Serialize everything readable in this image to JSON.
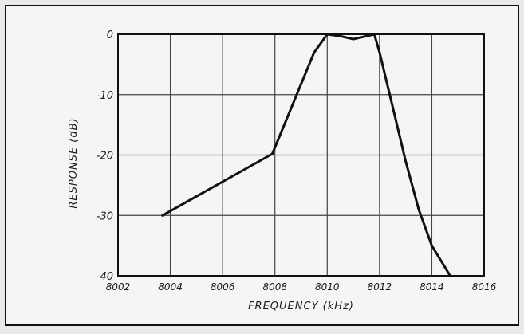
{
  "chart_data": {
    "type": "line",
    "title": "",
    "xlabel": "FREQUENCY (kHz)",
    "ylabel": "RESPONSE (dB)",
    "xlim": [
      8002,
      8016
    ],
    "ylim": [
      -40,
      0
    ],
    "x_ticks": [
      8002,
      8004,
      8006,
      8008,
      8010,
      8012,
      8014,
      8016
    ],
    "y_ticks": [
      0,
      -10,
      -20,
      -30,
      -40
    ],
    "x_tick_labels": [
      "8002",
      "8004",
      "8006",
      "8008",
      "8010",
      "8012",
      "8014",
      "8016"
    ],
    "y_tick_labels": [
      "0",
      "-10",
      "-20",
      "-30",
      "-40"
    ],
    "grid": true,
    "legend": "none",
    "series": [
      {
        "x": [
          8003.7,
          8007.9,
          8009.5,
          8010.0,
          8010.5,
          8011.0,
          8011.5,
          8011.8,
          8012.0,
          8012.5,
          8013.0,
          8013.5,
          8014.0,
          8014.7
        ],
        "y": [
          -30,
          -19.8,
          -3.0,
          0,
          -0.3,
          -0.8,
          -0.3,
          0,
          -3.0,
          -12,
          -21,
          -29,
          -35,
          -40
        ]
      }
    ],
    "colors": {
      "line": "#111111",
      "grid": "#444444",
      "background": "#f5f5f3"
    }
  }
}
